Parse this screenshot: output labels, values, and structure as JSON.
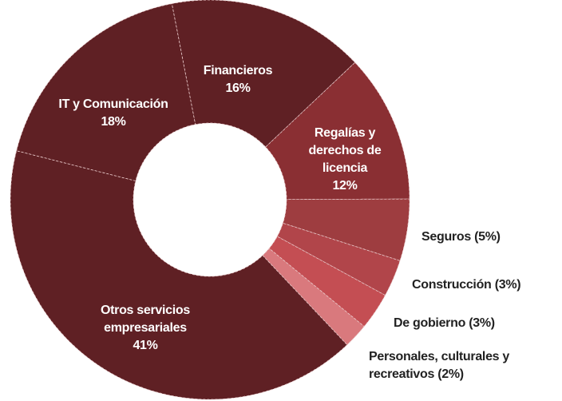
{
  "chart_data": {
    "type": "donut",
    "categories": [
      "Financieros",
      "Regalías y derechos de licencia",
      "Seguros",
      "Construcción",
      "De gobierno",
      "Personales, culturales y recreativos",
      "Otros servicios empresariales",
      "IT y Comunicación"
    ],
    "values": [
      16,
      12,
      5,
      3,
      3,
      2,
      41,
      18
    ],
    "value_labels": [
      "16%",
      "12%",
      "(5%)",
      "(3%)",
      "(3%)",
      "(2%)",
      "41%",
      "18%"
    ],
    "colors": [
      "#5f2024",
      "#8a2f33",
      "#9e3d40",
      "#b1454a",
      "#c44e53",
      "#d9797d",
      "#5f2024",
      "#5f2024"
    ]
  }
}
